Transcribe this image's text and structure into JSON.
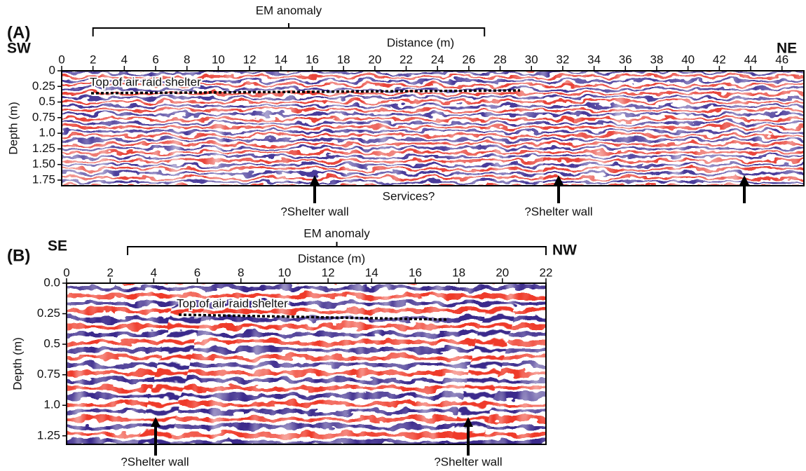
{
  "figure": {
    "panels": [
      {
        "label": "(A)",
        "left_direction": "SW",
        "right_direction": "NE",
        "bracket_label": "EM anomaly",
        "x_axis_label": "Distance (m)",
        "y_axis_label": "Depth (m)",
        "xlim": [
          0,
          47.4
        ],
        "ylim": [
          0,
          1.84
        ],
        "xticks": [
          0,
          2,
          4,
          6,
          8,
          10,
          12,
          14,
          16,
          18,
          20,
          22,
          24,
          26,
          28,
          30,
          32,
          34,
          36,
          38,
          40,
          42,
          44,
          46
        ],
        "yticks": [
          0,
          0.25,
          0.5,
          0.75,
          {
            "value": 1,
            "label": "1.0"
          },
          1.25,
          {
            "value": 1.5,
            "label": "1.50"
          },
          1.75
        ],
        "annotations": [
          "Top of air raid shelter",
          "Services?",
          "?Shelter wall",
          "?Shelter wall"
        ]
      },
      {
        "label": "(B)",
        "left_direction": "SE",
        "right_direction": "NW",
        "bracket_label": "EM anomaly",
        "x_axis_label": "Distance (m)",
        "y_axis_label": "Depth (m)",
        "xlim": [
          0,
          22
        ],
        "ylim": [
          0,
          1.32
        ],
        "xticks": [
          0,
          2,
          4,
          6,
          8,
          10,
          12,
          14,
          16,
          18,
          20,
          22
        ],
        "yticks": [
          {
            "value": 0,
            "label": "0.0"
          },
          0.25,
          0.5,
          0.75,
          {
            "value": 1,
            "label": "1.0"
          },
          1.25
        ],
        "annotations": [
          "Top of air raid shelter",
          "?Shelter wall",
          "?Shelter wall"
        ]
      }
    ]
  }
}
